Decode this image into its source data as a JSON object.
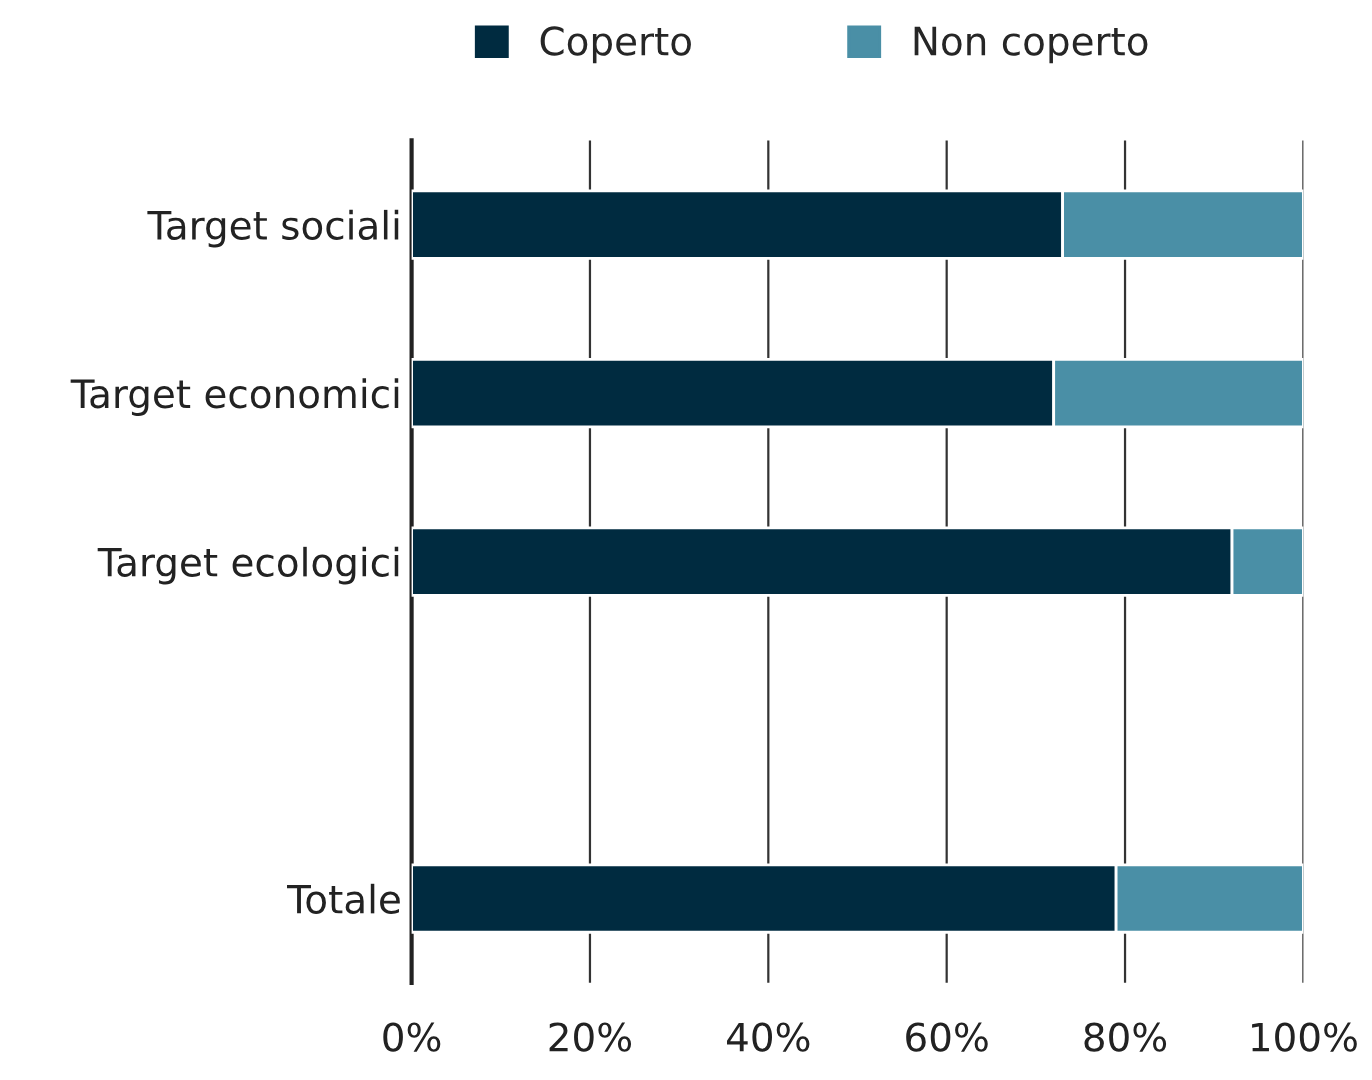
{
  "chart_data": {
    "type": "bar",
    "orientation": "horizontal",
    "stacked": true,
    "categories": [
      "Target sociali",
      "Target economici",
      "Target ecologici",
      null,
      "Totale"
    ],
    "series": [
      {
        "name": "Coperto",
        "color": "#002b40",
        "values": [
          73,
          72,
          92,
          null,
          79
        ]
      },
      {
        "name": "Non coperto",
        "color": "#4a8fa6",
        "values": [
          27,
          28,
          8,
          null,
          21
        ]
      }
    ],
    "xlim": [
      0,
      100
    ],
    "xticks": [
      {
        "value": 0,
        "label": "0%"
      },
      {
        "value": 20,
        "label": "20%"
      },
      {
        "value": 40,
        "label": "40%"
      },
      {
        "value": 60,
        "label": "60%"
      },
      {
        "value": 80,
        "label": "80%"
      },
      {
        "value": 100,
        "label": "100%"
      }
    ],
    "grid": "x",
    "legend": "top"
  }
}
